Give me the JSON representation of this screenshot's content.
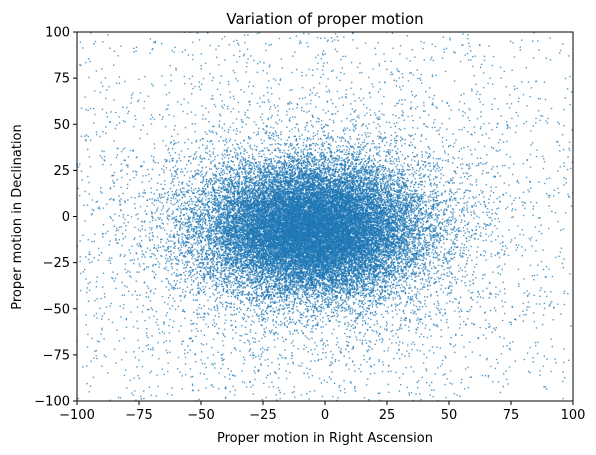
{
  "chart_data": {
    "type": "scatter",
    "title": "Variation of proper motion",
    "xlabel": "Proper motion in Right Ascension",
    "ylabel": "Proper motion in Declination",
    "xlim": [
      -100,
      100
    ],
    "ylim": [
      -100,
      100
    ],
    "xticks": [
      -100,
      -75,
      -50,
      -25,
      0,
      25,
      50,
      75,
      100
    ],
    "yticks": [
      -100,
      -75,
      -50,
      -25,
      0,
      25,
      50,
      75,
      100
    ],
    "grid": false,
    "marker_color": "#1f77b4",
    "series": [
      {
        "distribution": "dense elliptical cloud of points",
        "center": [
          -5,
          -7
        ],
        "core_extent_x": [
          -38,
          38
        ],
        "core_extent_y": [
          -40,
          25
        ],
        "std_x": 22,
        "std_y": 18,
        "scattered_halo_extent": [
          -100,
          100
        ],
        "points_sample": [
          [
            -3,
            -6
          ],
          [
            10,
            2
          ],
          [
            -20,
            -15
          ],
          [
            25,
            -10
          ],
          [
            -30,
            5
          ],
          [
            5,
            20
          ],
          [
            -12,
            -30
          ],
          [
            35,
            -5
          ],
          [
            -40,
            -20
          ],
          [
            15,
            15
          ],
          [
            0,
            -40
          ],
          [
            -25,
            18
          ],
          [
            45,
            10
          ],
          [
            -55,
            -5
          ],
          [
            60,
            -30
          ],
          [
            -65,
            25
          ],
          [
            70,
            40
          ],
          [
            -80,
            -60
          ],
          [
            85,
            -70
          ],
          [
            -90,
            80
          ],
          [
            95,
            90
          ],
          [
            -95,
            -95
          ],
          [
            50,
            60
          ],
          [
            -45,
            -75
          ],
          [
            30,
            75
          ],
          [
            -70,
            50
          ],
          [
            80,
            -10
          ],
          [
            -85,
            -35
          ],
          [
            20,
            -85
          ],
          [
            -10,
            95
          ]
        ]
      }
    ]
  }
}
